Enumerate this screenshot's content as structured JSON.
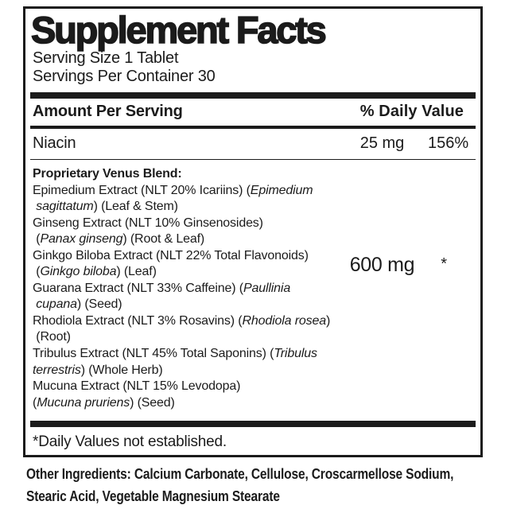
{
  "panel": {
    "title": "Supplement Facts",
    "serving_size": "Serving Size 1 Tablet",
    "servings_per_container": "Servings Per Container 30",
    "header": {
      "amount_label": "Amount Per Serving",
      "dv_label": "% Daily Value"
    },
    "nutrients": [
      {
        "name": "Niacin",
        "amount": "25 mg",
        "dv": "156%"
      }
    ],
    "blend": {
      "amount": "600 mg",
      "dv": "*",
      "lines": [
        {
          "bold": true,
          "segments": [
            {
              "t": "Proprietary Venus Blend:"
            }
          ]
        },
        {
          "bold": false,
          "segments": [
            {
              "t": "Epimedium Extract (NLT 20% Icariins) ("
            },
            {
              "t": "Epimedium",
              "i": true
            }
          ]
        },
        {
          "bold": false,
          "segments": [
            {
              "t": " "
            },
            {
              "t": "sagittatum",
              "i": true
            },
            {
              "t": ") (Leaf & Stem)"
            }
          ]
        },
        {
          "bold": false,
          "segments": [
            {
              "t": "Ginseng Extract (NLT 10% Ginsenosides)"
            }
          ]
        },
        {
          "bold": false,
          "segments": [
            {
              "t": " ("
            },
            {
              "t": "Panax ginseng",
              "i": true
            },
            {
              "t": ") (Root & Leaf)"
            }
          ]
        },
        {
          "bold": false,
          "segments": [
            {
              "t": "Ginkgo Biloba Extract (NLT 22% Total Flavonoids)"
            }
          ]
        },
        {
          "bold": false,
          "segments": [
            {
              "t": " ("
            },
            {
              "t": "Ginkgo biloba",
              "i": true
            },
            {
              "t": ") (Leaf)"
            }
          ]
        },
        {
          "bold": false,
          "segments": [
            {
              "t": "Guarana Extract (NLT 33% Caffeine) ("
            },
            {
              "t": "Paullinia",
              "i": true
            }
          ]
        },
        {
          "bold": false,
          "segments": [
            {
              "t": " "
            },
            {
              "t": "cupana",
              "i": true
            },
            {
              "t": ") (Seed)"
            }
          ]
        },
        {
          "bold": false,
          "segments": [
            {
              "t": "Rhodiola Extract (NLT 3% Rosavins) ("
            },
            {
              "t": "Rhodiola rosea",
              "i": true
            },
            {
              "t": ")"
            }
          ]
        },
        {
          "bold": false,
          "segments": [
            {
              "t": " (Root)"
            }
          ]
        },
        {
          "bold": false,
          "segments": [
            {
              "t": "Tribulus Extract (NLT 45% Total Saponins) ("
            },
            {
              "t": "Tribulus",
              "i": true
            }
          ]
        },
        {
          "bold": false,
          "segments": [
            {
              "t": "terrestris",
              "i": true
            },
            {
              "t": ") (Whole Herb)"
            }
          ]
        },
        {
          "bold": false,
          "segments": [
            {
              "t": "Mucuna Extract (NLT 15% Levodopa)"
            }
          ]
        },
        {
          "bold": false,
          "segments": [
            {
              "t": "("
            },
            {
              "t": "Mucuna pruriens",
              "i": true
            },
            {
              "t": ") (Seed)"
            }
          ]
        }
      ]
    },
    "footnote": "*Daily Values not established."
  },
  "other_ingredients": {
    "lines": [
      "Other Ingredients: Calcium Carbonate, Cellulose, Croscarmellose Sodium,",
      "Stearic Acid, Vegetable Magnesium Stearate"
    ]
  },
  "colors": {
    "ink": "#1b1b1b",
    "background": "#ffffff"
  }
}
